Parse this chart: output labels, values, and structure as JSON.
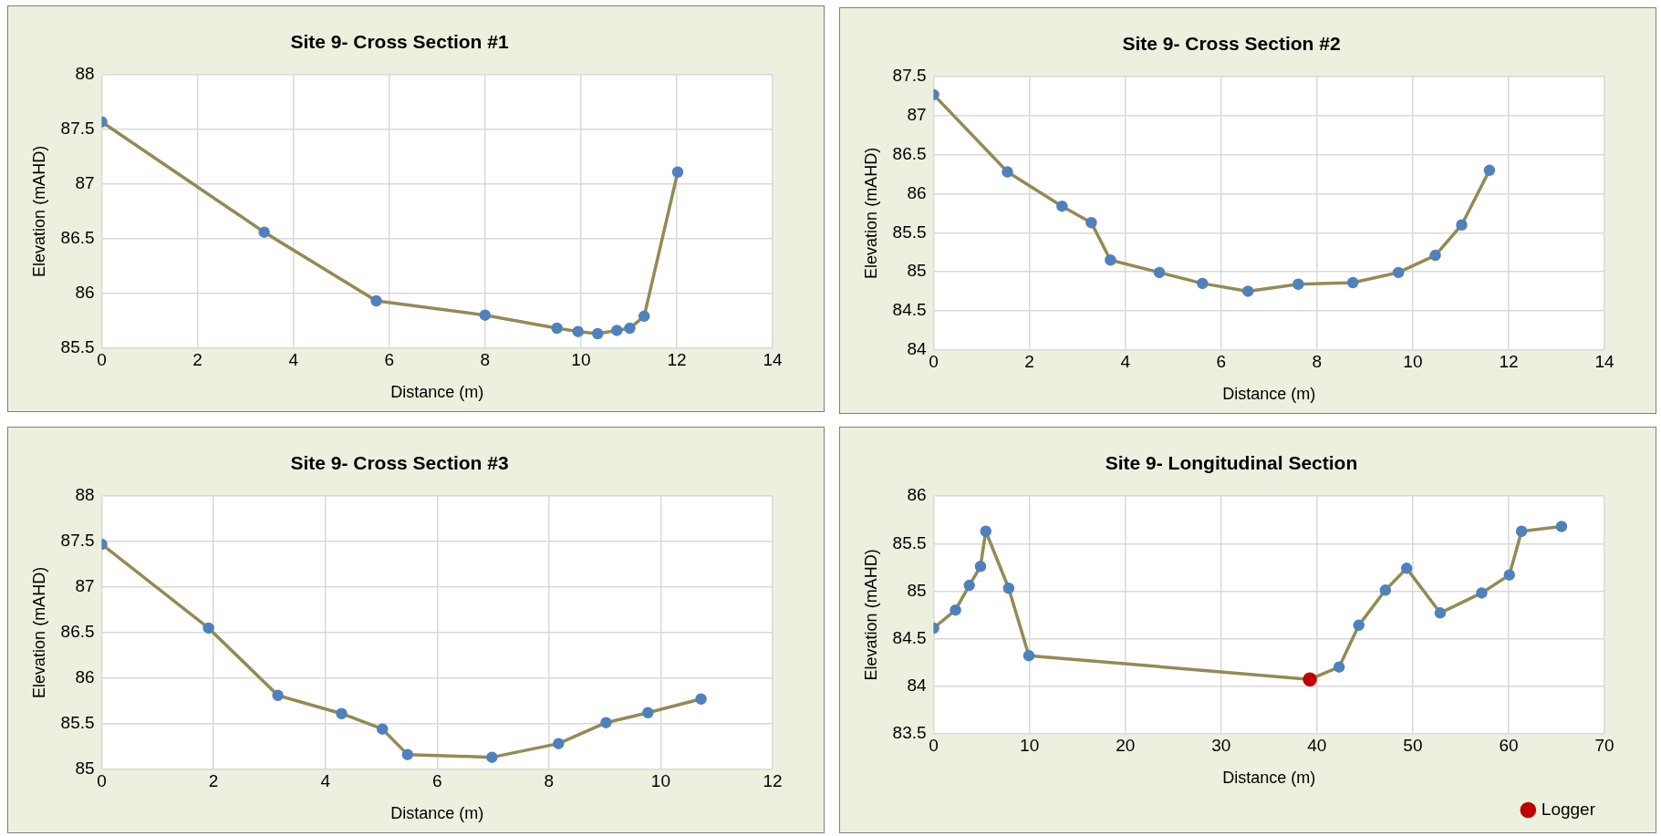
{
  "chart_data": [
    {
      "type": "line",
      "title": "Site 9- Cross Section #1",
      "xlabel": "Distance (m)",
      "ylabel": "Elevation (mAHD)",
      "xlim": [
        0,
        14
      ],
      "xticks": [
        0,
        2,
        4,
        6,
        8,
        10,
        12,
        14
      ],
      "ylim": [
        85.5,
        88
      ],
      "yticks": [
        85.5,
        86,
        86.5,
        87,
        87.5,
        88
      ],
      "grid": true,
      "marker": "circle",
      "legend": false,
      "series": [
        {
          "color": "#948a54",
          "colors": [
            "#4f81bd",
            "#4f81bd",
            "#4f81bd",
            "#4f81bd",
            "#4f81bd",
            "#4f81bd",
            "#4f81bd",
            "#4f81bd",
            "#4f81bd",
            "#4f81bd",
            "#4f81bd"
          ],
          "x": [
            0,
            3.39,
            5.73,
            8.0,
            9.5,
            9.94,
            10.35,
            10.75,
            11.02,
            11.32,
            12.02
          ],
          "values": [
            87.57,
            86.56,
            85.93,
            85.8,
            85.68,
            85.65,
            85.63,
            85.66,
            85.68,
            85.79,
            87.11
          ]
        }
      ]
    },
    {
      "type": "line",
      "title": "Site 9- Cross Section #2",
      "xlabel": "Distance (m)",
      "ylabel": "Elevation (mAHD)",
      "xlim": [
        0,
        14
      ],
      "xticks": [
        0,
        2,
        4,
        6,
        8,
        10,
        12,
        14
      ],
      "ylim": [
        84,
        87.5
      ],
      "yticks": [
        84,
        84.5,
        85,
        85.5,
        86,
        86.5,
        87,
        87.5
      ],
      "grid": true,
      "marker": "circle",
      "legend": false,
      "series": [
        {
          "color": "#948a54",
          "colors": [
            "#4f81bd",
            "#4f81bd",
            "#4f81bd",
            "#4f81bd",
            "#4f81bd",
            "#4f81bd",
            "#4f81bd",
            "#4f81bd",
            "#4f81bd",
            "#4f81bd",
            "#4f81bd",
            "#4f81bd",
            "#4f81bd",
            "#4f81bd"
          ],
          "x": [
            0,
            1.54,
            2.68,
            3.29,
            3.69,
            4.71,
            5.61,
            6.56,
            7.61,
            8.75,
            9.7,
            10.47,
            11.02,
            11.6
          ],
          "values": [
            87.27,
            86.28,
            85.84,
            85.63,
            85.15,
            84.99,
            84.85,
            84.75,
            84.84,
            84.86,
            84.99,
            85.21,
            85.6,
            86.3
          ]
        }
      ]
    },
    {
      "type": "line",
      "title": "Site 9- Cross Section #3",
      "xlabel": "Distance (m)",
      "ylabel": "Elevation (mAHD)",
      "xlim": [
        0,
        12
      ],
      "xticks": [
        0,
        2,
        4,
        6,
        8,
        10,
        12
      ],
      "ylim": [
        85,
        88
      ],
      "yticks": [
        85,
        85.5,
        86,
        86.5,
        87,
        87.5,
        88
      ],
      "grid": true,
      "marker": "circle",
      "legend": false,
      "series": [
        {
          "color": "#948a54",
          "colors": [
            "#4f81bd",
            "#4f81bd",
            "#4f81bd",
            "#4f81bd",
            "#4f81bd",
            "#4f81bd",
            "#4f81bd",
            "#4f81bd",
            "#4f81bd",
            "#4f81bd",
            "#4f81bd"
          ],
          "x": [
            0,
            1.91,
            3.15,
            4.29,
            5.02,
            5.47,
            6.98,
            8.17,
            9.02,
            9.77,
            10.72
          ],
          "values": [
            87.47,
            86.55,
            85.81,
            85.61,
            85.44,
            85.16,
            85.13,
            85.28,
            85.51,
            85.62,
            85.77
          ]
        }
      ]
    },
    {
      "type": "line",
      "title": "Site 9- Longitudinal Section",
      "xlabel": "Distance (m)",
      "ylabel": "Elevation (mAHD)",
      "xlim": [
        0,
        70
      ],
      "xticks": [
        0,
        10,
        20,
        30,
        40,
        50,
        60,
        70
      ],
      "ylim": [
        83.5,
        86
      ],
      "yticks": [
        83.5,
        84,
        84.5,
        85,
        85.5,
        86
      ],
      "grid": true,
      "marker": "circle",
      "legend": "bottom right",
      "series": [
        {
          "color": "#948a54",
          "colors": [
            "#4f81bd",
            "#4f81bd",
            "#4f81bd",
            "#4f81bd",
            "#4f81bd",
            "#4f81bd",
            "#4f81bd",
            "#c00000",
            "#4f81bd",
            "#4f81bd",
            "#4f81bd",
            "#4f81bd",
            "#4f81bd",
            "#4f81bd",
            "#4f81bd",
            "#4f81bd",
            "#4f81bd"
          ],
          "x": [
            0,
            2.28,
            3.72,
            4.89,
            5.44,
            7.83,
            9.94,
            39.26,
            42.31,
            44.37,
            47.14,
            49.36,
            52.86,
            57.19,
            60.08,
            61.35,
            65.52
          ],
          "values": [
            84.61,
            84.8,
            85.06,
            85.26,
            85.63,
            85.03,
            84.32,
            84.07,
            84.2,
            84.64,
            85.01,
            85.24,
            84.77,
            84.98,
            85.17,
            85.63,
            85.68
          ]
        },
        {
          "name": "Logger",
          "type": "scatter",
          "color": "#c00000",
          "x": [
            39.26
          ],
          "values": [
            84.07
          ]
        }
      ]
    }
  ]
}
